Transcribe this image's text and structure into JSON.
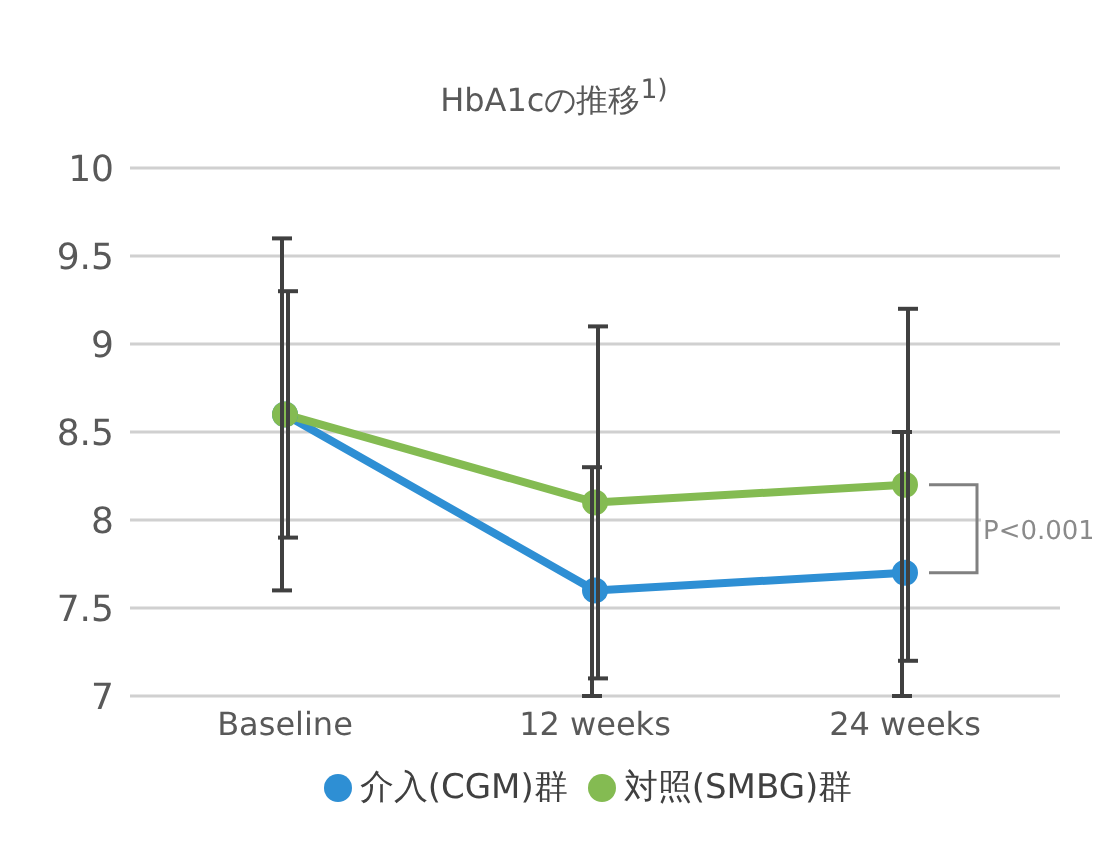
{
  "chart_data": {
    "type": "line",
    "title": "HbA1cの推移$^{1)}$",
    "categories": [
      "Baseline",
      "12 weeks",
      "24 weeks"
    ],
    "series": [
      {
        "name": "介入(CGM)群",
        "color": "#2e8fd4",
        "values": [
          8.6,
          7.6,
          7.7
        ],
        "errors": [
          1.0,
          [
            7.0,
            8.3
          ],
          [
            7.0,
            8.5
          ]
        ]
      },
      {
        "name": "対照(SMBG)群",
        "color": "#84bb52",
        "values": [
          8.6,
          8.1,
          8.2
        ],
        "errors": [
          0.7,
          1.0,
          1.0
        ]
      }
    ],
    "ylim": [
      7,
      10
    ],
    "yticks": [
      7,
      7.5,
      8,
      8.5,
      9,
      9.5,
      10
    ],
    "grid": "y",
    "legend": "bottom",
    "marker": "circle",
    "line_style": "solid",
    "annotations": [
      "P<0.001"
    ]
  }
}
